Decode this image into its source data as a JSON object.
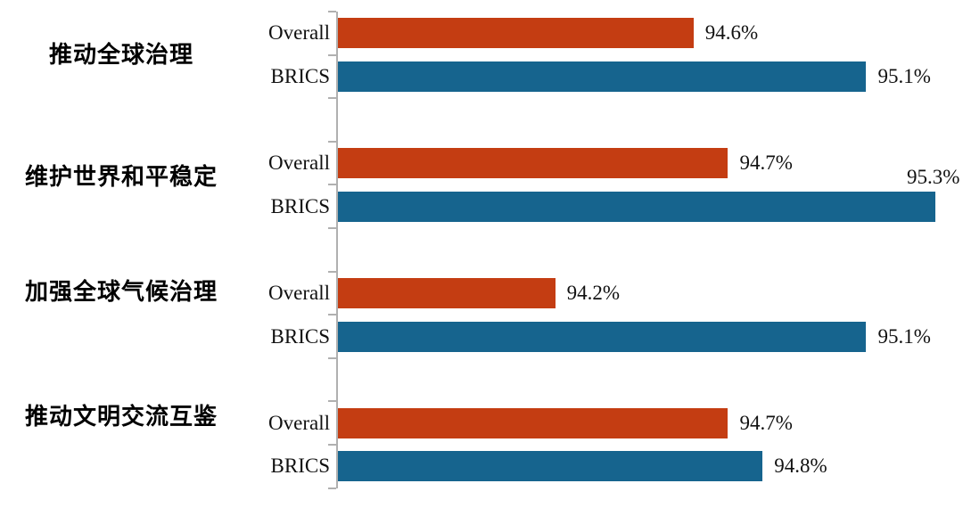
{
  "chart_data": {
    "type": "bar",
    "orientation": "horizontal",
    "title": "",
    "categories": [
      "推动全球治理",
      "维护世界和平稳定",
      "加强全球气候治理",
      "推动文明交流互鉴"
    ],
    "series": [
      {
        "name": "Overall",
        "color": "#C43D12",
        "values": [
          94.6,
          94.7,
          94.2,
          94.7
        ],
        "labels": [
          "94.6%",
          "94.7%",
          "94.2%",
          "94.7%"
        ]
      },
      {
        "name": "BRICS",
        "color": "#16648E",
        "values": [
          95.1,
          95.3,
          95.1,
          94.8
        ],
        "labels": [
          "95.1%",
          "95.3%",
          "95.1%",
          "94.8%"
        ]
      }
    ],
    "value_label_placement": {
      "default": "right-of-bar",
      "exceptions": [
        {
          "series": "BRICS",
          "category": "维护世界和平稳定",
          "placement": "above-bar-end"
        }
      ]
    },
    "axis": {
      "min": 93.57,
      "max": 95.38,
      "unit": "percent",
      "gridlines": false,
      "tick_count": 12
    },
    "legend_position": "per-bar-left-labels",
    "colors": {
      "axis": "#B0B0B0",
      "text": "#111111",
      "background": "#FFFFFF"
    }
  }
}
